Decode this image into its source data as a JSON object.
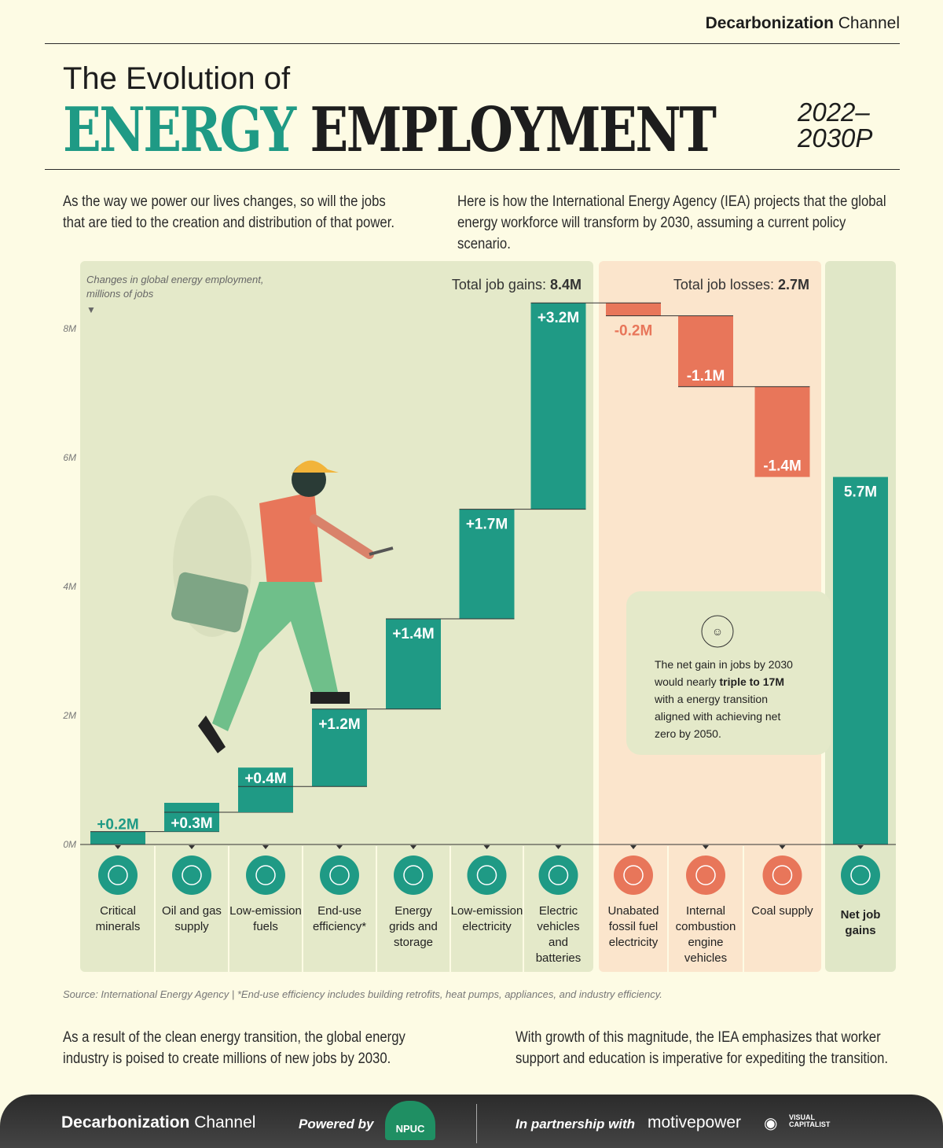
{
  "brand": {
    "bold": "Decarbonization",
    "light": "Channel"
  },
  "title": {
    "line1": "The Evolution of",
    "word1": "ENERGY",
    "word2": "EMPLOYMENT",
    "years1": "2022–",
    "years2": "2030P"
  },
  "intro": {
    "left": "As the way we power our lives changes, so will the jobs that are tied to the creation and distribution of that power.",
    "right": "Here is how the International Energy Agency (IEA) projects that the global energy workforce will transform by 2030, assuming a current policy scenario."
  },
  "chart_data": {
    "type": "waterfall",
    "ylabel": "Changes in global energy employment, millions of jobs",
    "ylim": [
      0,
      8
    ],
    "yticks": [
      "0M",
      "2M",
      "4M",
      "6M",
      "8M"
    ],
    "total_gains_label": "Total job gains: ",
    "total_gains_value": "8.4M",
    "total_losses_label": "Total job losses: ",
    "total_losses_value": "2.7M",
    "categories": [
      "Critical minerals",
      "Oil and gas supply",
      "Low-emission fuels",
      "End-use efficiency*",
      "Energy grids and storage",
      "Low-emission electricity",
      "Electric vehicles and batteries",
      "Unabated fossil fuel electricity",
      "Internal combustion engine vehicles",
      "Coal supply",
      "Net job gains"
    ],
    "values": [
      0.2,
      0.3,
      0.4,
      1.2,
      1.4,
      1.7,
      3.2,
      -0.2,
      -1.1,
      -1.4,
      5.7
    ],
    "labels": [
      "+0.2M",
      "+0.3M",
      "+0.4M",
      "+1.2M",
      "+1.4M",
      "+1.7M",
      "+3.2M",
      "-0.2M",
      "-1.1M",
      "-1.4M",
      "5.7M"
    ],
    "kinds": [
      "gain",
      "gain",
      "gain",
      "gain",
      "gain",
      "gain",
      "gain",
      "loss",
      "loss",
      "loss",
      "total"
    ],
    "icons": [
      "minerals-icon",
      "oil-tanker-icon",
      "fuel-pump-icon",
      "plug-leaf-icon",
      "grid-cubes-icon",
      "wind-solar-icon",
      "ev-battery-icon",
      "factory-icon",
      "car-icon",
      "wheelbarrow-icon",
      "growth-people-icon"
    ],
    "colors": {
      "gain": "#1f9a85",
      "loss": "#e8765a",
      "total": "#1f9a85"
    },
    "annotation": {
      "pre": "The net gain in jobs by 2030 would nearly ",
      "bold": "triple to 17M",
      "post": " with a energy transition aligned with achieving net zero by 2050."
    }
  },
  "source": "Source: International Energy Agency  |  *End-use efficiency includes building retrofits, heat pumps, appliances, and industry efficiency.",
  "outro": {
    "left": "As a result of the clean energy transition, the global energy industry is poised to create millions of new jobs by 2030.",
    "right": "With growth of this magnitude, the IEA emphasizes that worker support and education is imperative for expediting the transition."
  },
  "footer": {
    "brand_bold": "Decarbonization",
    "brand_light": "Channel",
    "powered": "Powered by",
    "npuc": "NPUC",
    "partner": "In partnership with",
    "motive": "motivepower",
    "vc1": "VISUAL",
    "vc2": "CAPITALIST"
  }
}
